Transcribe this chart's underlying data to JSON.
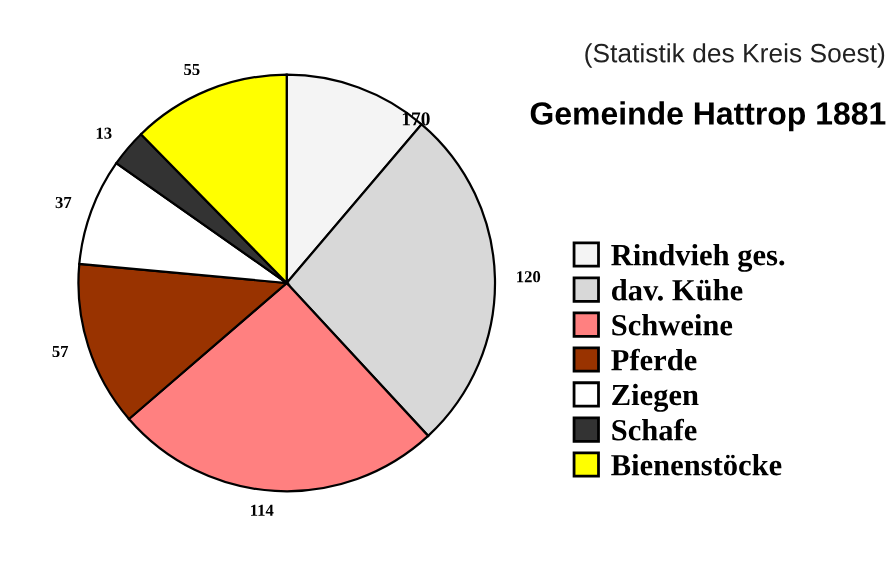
{
  "chart_data": {
    "type": "pie",
    "title": "Gemeinde Hattrop 1881",
    "subtitle": "(Statistik des Kreis Soest)",
    "categories": [
      "Rindvieh ges.",
      "dav. Kühe",
      "Schweine",
      "Pferde",
      "Ziegen",
      "Schafe",
      "Bienenstöcke"
    ],
    "values": [
      50,
      120,
      114,
      57,
      37,
      13,
      55
    ],
    "value_labels": [
      null,
      "120",
      "114",
      "57",
      "37",
      "13",
      "55"
    ],
    "colors": [
      "#f4f4f4",
      "#d8d8d8",
      "#ff8080",
      "#993300",
      "#ffffff",
      "#333333",
      "#ffff00"
    ],
    "annotations": [
      "170"
    ],
    "legend": "right"
  }
}
